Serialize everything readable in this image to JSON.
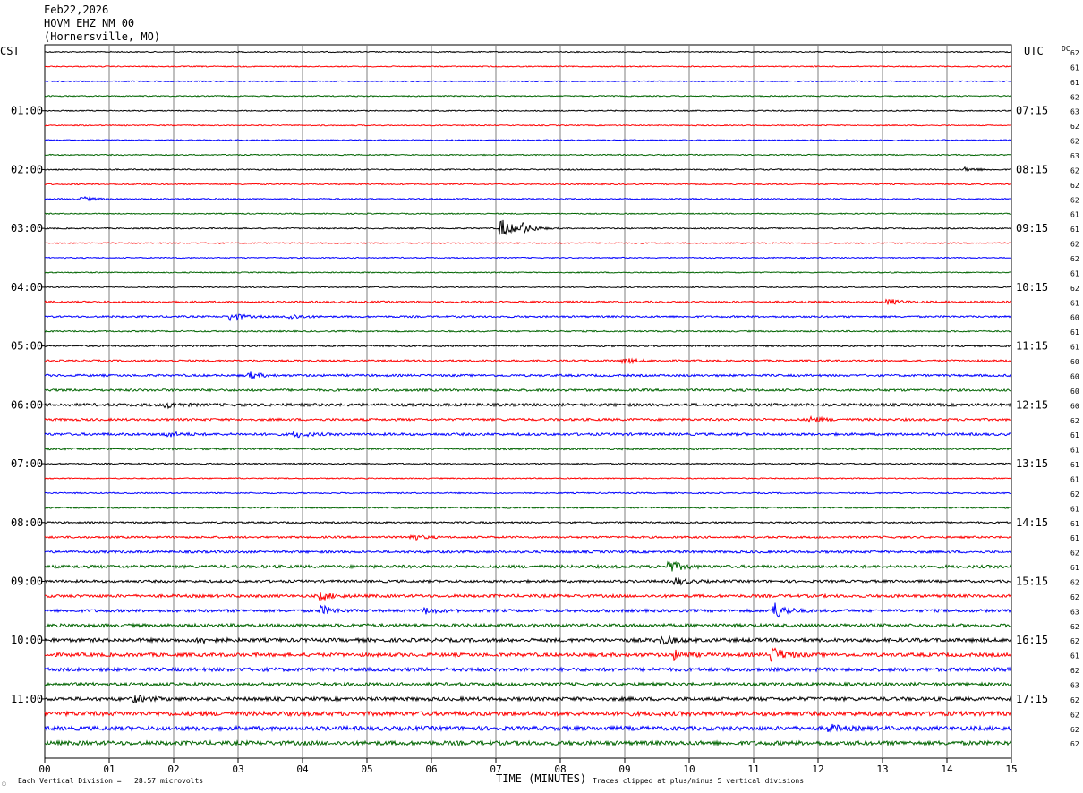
{
  "header": {
    "date": "Feb22,2026",
    "station": "HOVM EHZ NM 00",
    "location": "(Hornersville, MO)"
  },
  "left_axis_title": "CST",
  "right_axis_title": "UTC",
  "dc_title": "DC",
  "footer": {
    "scale_note": "Each Vertical Division =   28.57 microvolts",
    "xlabel": "TIME (MINUTES)",
    "clip_note": "Traces clipped at plus/minus 5 vertical divisions"
  },
  "colors": {
    "trace_cycle": [
      "#000000",
      "#ff0000",
      "#0000ff",
      "#006400"
    ],
    "grid": "#7f7f7f"
  },
  "chart_data": {
    "type": "line",
    "title": "HOVM EHZ NM 00 (Hornersville, MO) Feb22,2026",
    "xlabel": "TIME (MINUTES)",
    "xlim": [
      0,
      15
    ],
    "x_ticks": [
      "00",
      "01",
      "02",
      "03",
      "04",
      "05",
      "06",
      "07",
      "08",
      "09",
      "10",
      "11",
      "12",
      "13",
      "14",
      "15"
    ],
    "row_minutes": 15,
    "row_count": 48,
    "left_time_labels": [
      {
        "row": 4,
        "label": "01:00"
      },
      {
        "row": 8,
        "label": "02:00"
      },
      {
        "row": 12,
        "label": "03:00"
      },
      {
        "row": 16,
        "label": "04:00"
      },
      {
        "row": 20,
        "label": "05:00"
      },
      {
        "row": 24,
        "label": "06:00"
      },
      {
        "row": 28,
        "label": "07:00"
      },
      {
        "row": 32,
        "label": "08:00"
      },
      {
        "row": 36,
        "label": "09:00"
      },
      {
        "row": 40,
        "label": "10:00"
      },
      {
        "row": 44,
        "label": "11:00"
      }
    ],
    "right_time_labels": [
      {
        "row": 4,
        "label": "07:15"
      },
      {
        "row": 8,
        "label": "08:15"
      },
      {
        "row": 12,
        "label": "09:15"
      },
      {
        "row": 16,
        "label": "10:15"
      },
      {
        "row": 20,
        "label": "11:15"
      },
      {
        "row": 24,
        "label": "12:15"
      },
      {
        "row": 28,
        "label": "13:15"
      },
      {
        "row": 32,
        "label": "14:15"
      },
      {
        "row": 36,
        "label": "15:15"
      },
      {
        "row": 40,
        "label": "16:15"
      },
      {
        "row": 44,
        "label": "17:15"
      }
    ],
    "dc_offsets": [
      "62",
      "61",
      "61",
      "62",
      "63",
      "62",
      "62",
      "63",
      "62",
      "62",
      "62",
      "61",
      "61",
      "62",
      "62",
      "61",
      "62",
      "61",
      "60",
      "61",
      "61",
      "60",
      "60",
      "60",
      "60",
      "62",
      "61",
      "61",
      "61",
      "61",
      "62",
      "61",
      "61",
      "61",
      "62",
      "61",
      "62",
      "62",
      "63",
      "62",
      "62",
      "61",
      "62",
      "63",
      "62",
      "62",
      "62",
      "62"
    ],
    "amplitude": [
      0.6,
      0.6,
      0.6,
      0.6,
      0.6,
      0.6,
      0.6,
      0.6,
      0.7,
      0.7,
      0.7,
      0.6,
      0.7,
      0.6,
      0.6,
      0.6,
      0.6,
      1.0,
      1.0,
      0.8,
      0.9,
      1.0,
      1.2,
      1.3,
      1.6,
      1.3,
      1.4,
      1.0,
      0.7,
      0.6,
      0.7,
      0.8,
      0.9,
      1.1,
      1.3,
      1.7,
      1.4,
      1.6,
      1.6,
      1.8,
      2.0,
      2.0,
      2.0,
      1.8,
      2.0,
      2.4,
      2.3,
      2.3
    ],
    "events": [
      {
        "row": 8,
        "minute": 14.3,
        "amp": 2.0
      },
      {
        "row": 10,
        "minute": 0.6,
        "amp": 2.0
      },
      {
        "row": 12,
        "minute": 7.1,
        "amp": 10.0
      },
      {
        "row": 12,
        "minute": 7.4,
        "amp": 6.0
      },
      {
        "row": 17,
        "minute": 13.1,
        "amp": 3.0
      },
      {
        "row": 18,
        "minute": 2.9,
        "amp": 4.0
      },
      {
        "row": 18,
        "minute": 3.8,
        "amp": 3.0
      },
      {
        "row": 21,
        "minute": 9.0,
        "amp": 3.0
      },
      {
        "row": 22,
        "minute": 3.2,
        "amp": 3.0
      },
      {
        "row": 24,
        "minute": 1.9,
        "amp": 3.0
      },
      {
        "row": 25,
        "minute": 11.9,
        "amp": 3.0
      },
      {
        "row": 26,
        "minute": 1.9,
        "amp": 3.0
      },
      {
        "row": 26,
        "minute": 3.9,
        "amp": 3.0
      },
      {
        "row": 33,
        "minute": 5.7,
        "amp": 3.0
      },
      {
        "row": 35,
        "minute": 9.7,
        "amp": 6.0
      },
      {
        "row": 36,
        "minute": 9.8,
        "amp": 4.0
      },
      {
        "row": 37,
        "minute": 4.3,
        "amp": 4.0
      },
      {
        "row": 38,
        "minute": 4.3,
        "amp": 5.0
      },
      {
        "row": 38,
        "minute": 5.9,
        "amp": 3.0
      },
      {
        "row": 38,
        "minute": 11.3,
        "amp": 10.0
      },
      {
        "row": 40,
        "minute": 2.4,
        "amp": 3.0
      },
      {
        "row": 40,
        "minute": 9.6,
        "amp": 4.0
      },
      {
        "row": 41,
        "minute": 9.8,
        "amp": 4.0
      },
      {
        "row": 41,
        "minute": 11.3,
        "amp": 8.0
      },
      {
        "row": 44,
        "minute": 1.4,
        "amp": 3.0
      },
      {
        "row": 46,
        "minute": 12.2,
        "amp": 3.0
      }
    ]
  }
}
